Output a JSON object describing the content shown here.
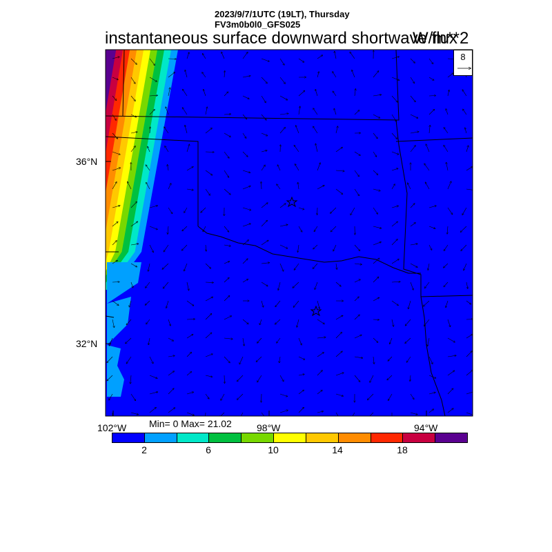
{
  "header": {
    "datetime": "2023/9/7/1UTC (19LT), Thursday",
    "model": "FV3m0b0l0_GFS025"
  },
  "title": "instantaneous surface downward shortwave flux",
  "units": "W/m**2",
  "stats": {
    "text": "Min= 0 Max= 21.02",
    "min": 0,
    "max": 21.02
  },
  "reference_vector": {
    "label": "8"
  },
  "lat_labels": [
    "36°N",
    "32°N"
  ],
  "lon_labels": [
    "102°W",
    "98°W",
    "94°W"
  ],
  "colorbar": {
    "colors": [
      "#0000ff",
      "#00a0ff",
      "#00e8c8",
      "#00c040",
      "#78d800",
      "#ffff00",
      "#ffc800",
      "#ff8c00",
      "#ff2800",
      "#c80040",
      "#5a0090"
    ],
    "tick_labels": [
      "2",
      "6",
      "10",
      "14",
      "18"
    ]
  },
  "markers": {
    "type": "star-icon",
    "count": 2
  }
}
